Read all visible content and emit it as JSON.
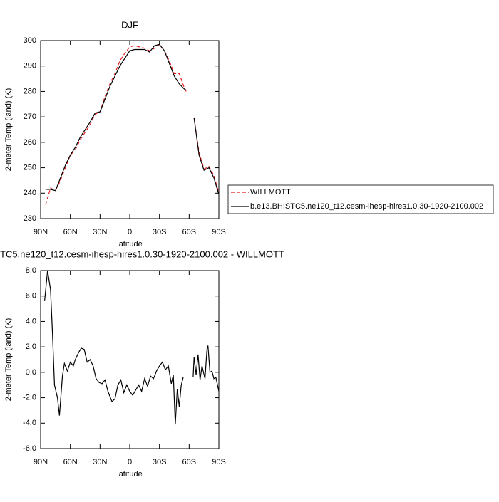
{
  "chart_data": [
    {
      "type": "line",
      "title": "DJF",
      "xlabel": "latitude",
      "ylabel": "2-meter Temp (land) (K)",
      "x": [
        85,
        80,
        75,
        70,
        65,
        60,
        55,
        50,
        45,
        40,
        35,
        30,
        25,
        20,
        15,
        10,
        5,
        0,
        -5,
        -10,
        -15,
        -20,
        -25,
        -30,
        -35,
        -40,
        -45,
        -50,
        -55,
        -57,
        -60,
        -65,
        -70,
        -75,
        -80,
        -85,
        -90
      ],
      "series": [
        {
          "name": "WILLMOTT",
          "color": "#e41a1c",
          "dash": true,
          "values": [
            235.5,
            242,
            241,
            245,
            250,
            255,
            257,
            261,
            264,
            267,
            271,
            272,
            278,
            283,
            287,
            292,
            295,
            297.5,
            298,
            297.5,
            297,
            296,
            297,
            298.5,
            296,
            292,
            287,
            287,
            281.5,
            280,
            null,
            269.5,
            256,
            249.5,
            250.5,
            247,
            240
          ]
        },
        {
          "name": "b.e13.BHISTC5.ne120_t12.cesm-ihesp-hires1.0.30-1920-2100.002",
          "color": "#000000",
          "dash": false,
          "values": [
            241.5,
            241.5,
            241,
            246,
            251,
            255,
            258,
            262,
            265,
            268,
            271.5,
            272,
            277,
            282,
            286,
            290,
            293,
            296,
            296.5,
            296.5,
            296.5,
            295.5,
            298,
            298.5,
            296,
            291,
            286,
            283,
            281,
            280.5,
            null,
            269.5,
            255,
            249,
            250,
            246,
            239.5
          ]
        }
      ],
      "xlim": [
        90,
        -90
      ],
      "xticks": [
        {
          "value": 90,
          "label": "90N"
        },
        {
          "value": 60,
          "label": "60N"
        },
        {
          "value": 30,
          "label": "30N"
        },
        0,
        {
          "value": -30,
          "label": "30S"
        },
        {
          "value": -60,
          "label": "60S"
        },
        {
          "value": -90,
          "label": "90S"
        }
      ],
      "ylim": [
        230,
        300
      ],
      "yticks": [
        230,
        240,
        250,
        260,
        270,
        280,
        290,
        300
      ],
      "legend": "right"
    },
    {
      "type": "line",
      "title": "TC5.ne120_t12.cesm-ihesp-hires1.0.30-1920-2100.002 - WILLMOTT",
      "xlabel": "latitude",
      "ylabel": "2-meter Temp (land) (K)",
      "x": [
        86,
        83,
        80,
        78,
        76,
        73,
        71,
        68,
        66,
        63,
        60,
        57,
        55,
        52,
        49,
        46,
        43,
        40,
        37,
        34,
        31,
        28,
        25,
        22,
        18,
        15,
        12,
        9,
        6,
        3,
        0,
        -3,
        -6,
        -9,
        -12,
        -15,
        -18,
        -21,
        -24,
        -27,
        -30,
        -33,
        -36,
        -39,
        -42,
        -44,
        -46,
        -48,
        -50,
        -52,
        -54,
        -56,
        -60,
        -64,
        -65,
        -67,
        -69,
        -71,
        -73,
        -76,
        -78,
        -79,
        -81,
        -83,
        -85,
        -87,
        -90
      ],
      "series": [
        {
          "color": "#000000",
          "dash": false,
          "values": [
            5.6,
            8.0,
            6.5,
            3,
            -1,
            -2,
            -3.4,
            -0.3,
            0.7,
            0.1,
            0.8,
            0.5,
            1.0,
            1.5,
            1.9,
            1.8,
            0.8,
            1.0,
            0.5,
            -0.5,
            -0.8,
            -0.9,
            -0.6,
            -1.5,
            -2.3,
            -2.1,
            -1.0,
            -0.6,
            -1.6,
            -1.0,
            -1.5,
            -1.8,
            -1.4,
            -1.0,
            -1.5,
            -0.5,
            -1.1,
            -0.3,
            -0.5,
            0.1,
            0.5,
            0.8,
            0.2,
            0.5,
            -0.9,
            -0.2,
            -4.1,
            -1.3,
            -2.7,
            -1.0,
            -0.4,
            null,
            null,
            -0.4,
            1.2,
            -0.2,
            1.4,
            -0.6,
            0.5,
            -0.5,
            1.8,
            2.1,
            0.0,
            0.1,
            -0.5,
            -0.4,
            -1.5
          ]
        }
      ],
      "xlim": [
        90,
        -90
      ],
      "xticks": [
        {
          "value": 90,
          "label": "90N"
        },
        {
          "value": 60,
          "label": "60N"
        },
        {
          "value": 30,
          "label": "30N"
        },
        0,
        {
          "value": -30,
          "label": "30S"
        },
        {
          "value": -60,
          "label": "60S"
        },
        {
          "value": -90,
          "label": "90S"
        }
      ],
      "ylim": [
        -6,
        8
      ],
      "yticks": [
        {
          "value": -6,
          "label": "-6.0"
        },
        {
          "value": -4,
          "label": "-4.0"
        },
        {
          "value": -2,
          "label": "-2.0"
        },
        {
          "value": 0,
          "label": "0.0"
        },
        {
          "value": 2,
          "label": "2.0"
        },
        {
          "value": 4,
          "label": "4.0"
        },
        {
          "value": 6,
          "label": "6.0"
        },
        {
          "value": 8,
          "label": "8.0"
        }
      ]
    }
  ]
}
